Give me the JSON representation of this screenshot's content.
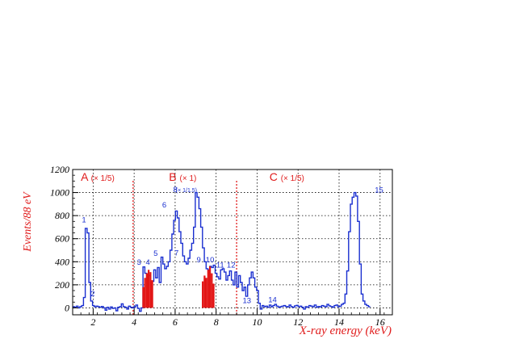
{
  "chart_data": {
    "type": "histogram",
    "xlabel": "X-ray energy (keV)",
    "ylabel": "Events/88 eV",
    "xlim": [
      1.0,
      16.6
    ],
    "ylim": [
      -60,
      1200
    ],
    "xticks": [
      2,
      4,
      6,
      8,
      10,
      12,
      14,
      16
    ],
    "xtick_labels": [
      "2",
      "4",
      "6",
      "8",
      "10",
      "12",
      "14",
      "16"
    ],
    "yticks": [
      0,
      200,
      400,
      600,
      800,
      1000,
      1200
    ],
    "ytick_labels": [
      "0",
      "200",
      "400",
      "600",
      "800",
      "1000",
      "1200"
    ],
    "grid": true,
    "region_boundaries_keV": [
      3.95,
      9.0
    ],
    "regions": [
      {
        "name": "A",
        "scale": "(× 1/5)",
        "x": 1.4
      },
      {
        "name": "B",
        "scale": "(× 1)",
        "x": 5.7
      },
      {
        "name": "C",
        "scale": "(× 1/5)",
        "x": 10.6
      }
    ],
    "series": [
      {
        "color": "#1a2fd0",
        "bin_edges_start": 1.0,
        "bin_width": 0.088,
        "values": [
          10,
          5,
          15,
          0,
          10,
          20,
          90,
          690,
          650,
          220,
          60,
          20,
          10,
          15,
          10,
          5,
          12,
          0,
          -20,
          5,
          -10,
          8,
          -5,
          0,
          -25,
          5,
          10,
          35,
          10,
          5,
          -10,
          15,
          5,
          0,
          10,
          25,
          -5,
          -30,
          0,
          355,
          300,
          250,
          280,
          200,
          230,
          330,
          260,
          350,
          220,
          440,
          380,
          340,
          360,
          400,
          500,
          640,
          760,
          840,
          780,
          660,
          560,
          450,
          400,
          380,
          430,
          500,
          560,
          700,
          1000,
          960,
          860,
          700,
          520,
          400,
          340,
          330,
          360,
          350,
          370,
          300,
          270,
          250,
          330,
          340,
          310,
          240,
          280,
          320,
          240,
          200,
          310,
          180,
          280,
          220,
          150,
          180,
          100,
          200,
          260,
          310,
          260,
          180,
          150,
          40,
          -10,
          20,
          10,
          15,
          5,
          25,
          10,
          20,
          30,
          15,
          5,
          10,
          15,
          20,
          12,
          8,
          25,
          10,
          5,
          18,
          22,
          10,
          15,
          5,
          -10,
          10,
          5,
          20,
          15,
          10,
          25,
          5,
          12,
          8,
          20,
          15,
          10,
          30,
          18,
          12,
          5,
          20,
          25,
          10,
          15,
          30,
          40,
          120,
          320,
          660,
          900,
          960,
          1000,
          970,
          750,
          380,
          120,
          60,
          30,
          20,
          10
        ]
      },
      {
        "color": "#e21414",
        "bin_edges_start": 4.4,
        "bin_width": 0.088,
        "values": [
          180,
          260,
          300,
          330,
          310,
          240,
          0,
          0,
          0,
          0,
          0,
          0,
          0,
          0,
          0,
          0,
          0,
          0,
          0,
          0,
          0,
          0,
          0,
          0,
          0,
          0,
          0,
          0,
          0,
          0,
          0,
          0,
          0,
          230,
          280,
          260,
          330,
          360,
          300,
          210
        ]
      }
    ],
    "peak_labels": [
      {
        "text": "1",
        "x": 1.55,
        "y": 740
      },
      {
        "text": "2",
        "x": 1.98,
        "y": 100
      },
      {
        "text": "3",
        "x": 4.24,
        "y": 375
      },
      {
        "text": "4",
        "x": 4.67,
        "y": 375
      },
      {
        "text": "5",
        "x": 5.05,
        "y": 450
      },
      {
        "text": "6",
        "x": 5.47,
        "y": 870
      },
      {
        "text": "7",
        "x": 6.07,
        "y": 455
      },
      {
        "text": "8",
        "x": 6.01,
        "y": 1005
      },
      {
        "text": "(× 1/1.5)",
        "x": 6.55,
        "y": 1005
      },
      {
        "text": "9",
        "x": 7.15,
        "y": 395
      },
      {
        "text": "10",
        "x": 7.7,
        "y": 395
      },
      {
        "text": "11",
        "x": 8.2,
        "y": 350
      },
      {
        "text": "12",
        "x": 8.73,
        "y": 350
      },
      {
        "text": "13",
        "x": 9.5,
        "y": 40
      },
      {
        "text": "14",
        "x": 10.75,
        "y": 50
      },
      {
        "text": "15",
        "x": 15.95,
        "y": 1000
      }
    ]
  }
}
